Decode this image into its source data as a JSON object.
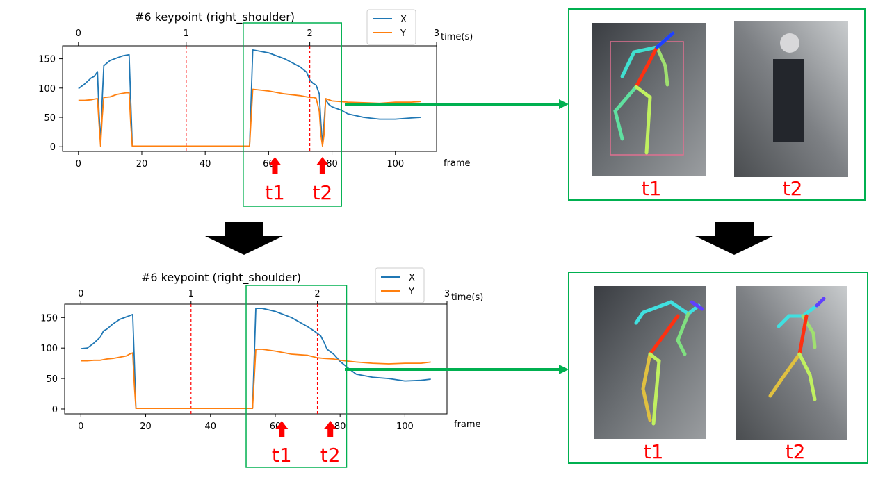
{
  "chart_data": [
    {
      "type": "line",
      "title": "#6 keypoint (right_shoulder)",
      "xlabel": "frame",
      "top_axis_label": "time(s)",
      "xlim": [
        -5,
        113
      ],
      "ylim": [
        -8,
        172
      ],
      "xticks": [
        0,
        20,
        40,
        60,
        80,
        100
      ],
      "yticks": [
        0,
        50,
        100,
        150
      ],
      "top_ticks": [
        {
          "frame": 0,
          "label": "0"
        },
        {
          "frame": 34,
          "label": "1"
        },
        {
          "frame": 73,
          "label": "2"
        },
        {
          "frame": 113,
          "label": "3"
        }
      ],
      "vlines": [
        34,
        73
      ],
      "legend": {
        "position": "top-right",
        "entries": [
          "X",
          "Y"
        ]
      },
      "markers": [
        {
          "label": "t1",
          "frame": 62
        },
        {
          "label": "t2",
          "frame": 77
        }
      ],
      "highlight_range": [
        52,
        83
      ],
      "series": [
        {
          "name": "X",
          "color": "#1f77b4",
          "x": [
            0,
            2,
            4,
            5,
            6,
            6.5,
            7,
            7.5,
            8,
            10,
            12,
            14,
            15,
            16,
            16.5,
            17,
            20,
            30,
            40,
            50,
            54,
            55,
            60,
            65,
            70,
            72,
            73,
            74,
            75,
            76,
            76.5,
            77,
            77.5,
            78,
            79,
            80,
            83,
            85,
            90,
            95,
            100,
            105,
            108
          ],
          "y": [
            99,
            107,
            117,
            120,
            128,
            60,
            5,
            80,
            138,
            147,
            151,
            155,
            156,
            157,
            80,
            1,
            1,
            1,
            1,
            1,
            1,
            165,
            160,
            150,
            136,
            127,
            114,
            108,
            105,
            90,
            40,
            4,
            40,
            80,
            72,
            68,
            62,
            56,
            50,
            47,
            47,
            49,
            50
          ]
        },
        {
          "name": "Y",
          "color": "#ff7f0e",
          "x": [
            0,
            2,
            4,
            5,
            6,
            6.5,
            7,
            7.5,
            8,
            10,
            12,
            14,
            15,
            16,
            16.5,
            17,
            20,
            30,
            40,
            50,
            54,
            55,
            60,
            65,
            70,
            72,
            73,
            74,
            75,
            76,
            76.5,
            77,
            77.5,
            78,
            80,
            85,
            90,
            95,
            100,
            105,
            108
          ],
          "y": [
            79,
            79,
            80,
            81,
            82,
            40,
            1,
            50,
            84,
            85,
            89,
            91,
            92,
            92,
            40,
            1,
            1,
            1,
            1,
            1,
            1,
            98,
            95,
            90,
            87,
            85,
            84,
            84,
            83,
            60,
            20,
            1,
            20,
            82,
            78,
            76,
            75,
            74,
            76,
            76,
            77
          ]
        }
      ]
    },
    {
      "type": "line",
      "title": "#6 keypoint (right_shoulder)",
      "xlabel": "frame",
      "top_axis_label": "time(s)",
      "xlim": [
        -5,
        113
      ],
      "ylim": [
        -8,
        172
      ],
      "xticks": [
        0,
        20,
        40,
        60,
        80,
        100
      ],
      "yticks": [
        0,
        50,
        100,
        150
      ],
      "top_ticks": [
        {
          "frame": 0,
          "label": "0"
        },
        {
          "frame": 34,
          "label": "1"
        },
        {
          "frame": 73,
          "label": "2"
        },
        {
          "frame": 113,
          "label": "3"
        }
      ],
      "vlines": [
        34,
        73
      ],
      "legend": {
        "position": "top-right",
        "entries": [
          "X",
          "Y"
        ]
      },
      "markers": [
        {
          "label": "t1",
          "frame": 62
        },
        {
          "label": "t2",
          "frame": 77
        }
      ],
      "highlight_range": [
        51,
        82
      ],
      "series": [
        {
          "name": "X",
          "color": "#1f77b4",
          "x": [
            0,
            2,
            4,
            6,
            7,
            8,
            10,
            12,
            14,
            15,
            16,
            16.5,
            17,
            20,
            30,
            40,
            50,
            53,
            54,
            56,
            60,
            65,
            70,
            72,
            74,
            75,
            76,
            78,
            80,
            83,
            85,
            90,
            95,
            100,
            105,
            108
          ],
          "y": [
            99,
            100,
            108,
            118,
            128,
            131,
            140,
            147,
            151,
            153,
            155,
            80,
            1,
            1,
            1,
            1,
            1,
            1,
            165,
            165,
            160,
            150,
            135,
            128,
            120,
            110,
            98,
            90,
            78,
            65,
            57,
            52,
            50,
            46,
            47,
            49
          ]
        },
        {
          "name": "Y",
          "color": "#ff7f0e",
          "x": [
            0,
            2,
            4,
            6,
            8,
            10,
            12,
            14,
            15,
            16,
            16.5,
            17,
            20,
            30,
            40,
            50,
            53,
            54,
            56,
            60,
            65,
            70,
            73,
            75,
            78,
            80,
            85,
            90,
            95,
            100,
            105,
            108
          ],
          "y": [
            79,
            79,
            80,
            80,
            82,
            83,
            85,
            87,
            90,
            92,
            40,
            1,
            1,
            1,
            1,
            1,
            1,
            98,
            98,
            95,
            90,
            88,
            84,
            83,
            82,
            80,
            77,
            75,
            74,
            75,
            75,
            77
          ]
        }
      ]
    }
  ],
  "panels": {
    "top": {
      "label_t1": "t1",
      "label_t2": "t2"
    },
    "bottom": {
      "label_t1": "t1",
      "label_t2": "t2"
    }
  },
  "colors": {
    "box": "#00b050",
    "arrow": "#00b050",
    "marker": "#ff0000",
    "down_arrow": "#000000"
  }
}
